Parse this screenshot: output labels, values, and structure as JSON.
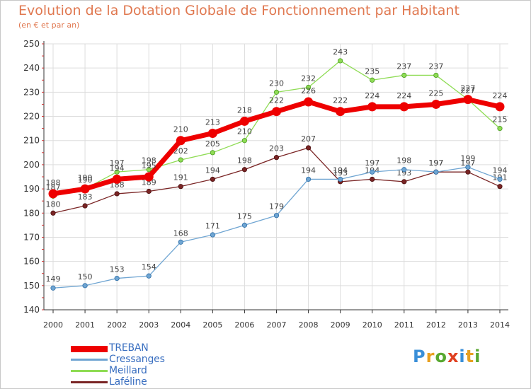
{
  "header": {
    "title": "Evolution de la Dotation Globale de Fonctionnement par Habitant",
    "subtitle": "(en € et par an)"
  },
  "branding": {
    "logo_text": "Proxiti"
  },
  "colors": {
    "title": "#e07850",
    "grid": "#dddddd",
    "axis": "#333333",
    "TREBAN": "#ee0000",
    "Cressanges": "#6fa5d2",
    "Meillard": "#8fdc55",
    "Laféline": "#7a2525"
  },
  "chart_data": {
    "type": "line",
    "title": "Evolution de la Dotation Globale de Fonctionnement par Habitant",
    "subtitle": "(en € et par an)",
    "xlabel": "",
    "ylabel": "",
    "ylim": [
      140,
      250
    ],
    "yticks": [
      140,
      150,
      160,
      170,
      180,
      190,
      200,
      210,
      220,
      230,
      240,
      250
    ],
    "grid": true,
    "legend_position": "bottom-left",
    "x": [
      "2000",
      "2001",
      "2002",
      "2003",
      "2004",
      "2005",
      "2006",
      "2007",
      "2008",
      "2009",
      "2010",
      "2011",
      "2012",
      "2013",
      "2014"
    ],
    "series": [
      {
        "name": "TREBAN",
        "values": [
          188,
          190,
          194,
          195,
          210,
          213,
          218,
          222,
          226,
          222,
          224,
          224,
          225,
          227,
          224
        ]
      },
      {
        "name": "Cressanges",
        "values": [
          149,
          150,
          153,
          154,
          168,
          171,
          175,
          179,
          194,
          194,
          197,
          198,
          197,
          199,
          194
        ]
      },
      {
        "name": "Meillard",
        "values": [
          187,
          190,
          197,
          198,
          202,
          205,
          210,
          230,
          232,
          243,
          235,
          237,
          237,
          227,
          215
        ]
      },
      {
        "name": "Laféline",
        "values": [
          180,
          183,
          188,
          189,
          191,
          194,
          198,
          203,
          207,
          193,
          194,
          193,
          197,
          197,
          191
        ]
      }
    ]
  }
}
